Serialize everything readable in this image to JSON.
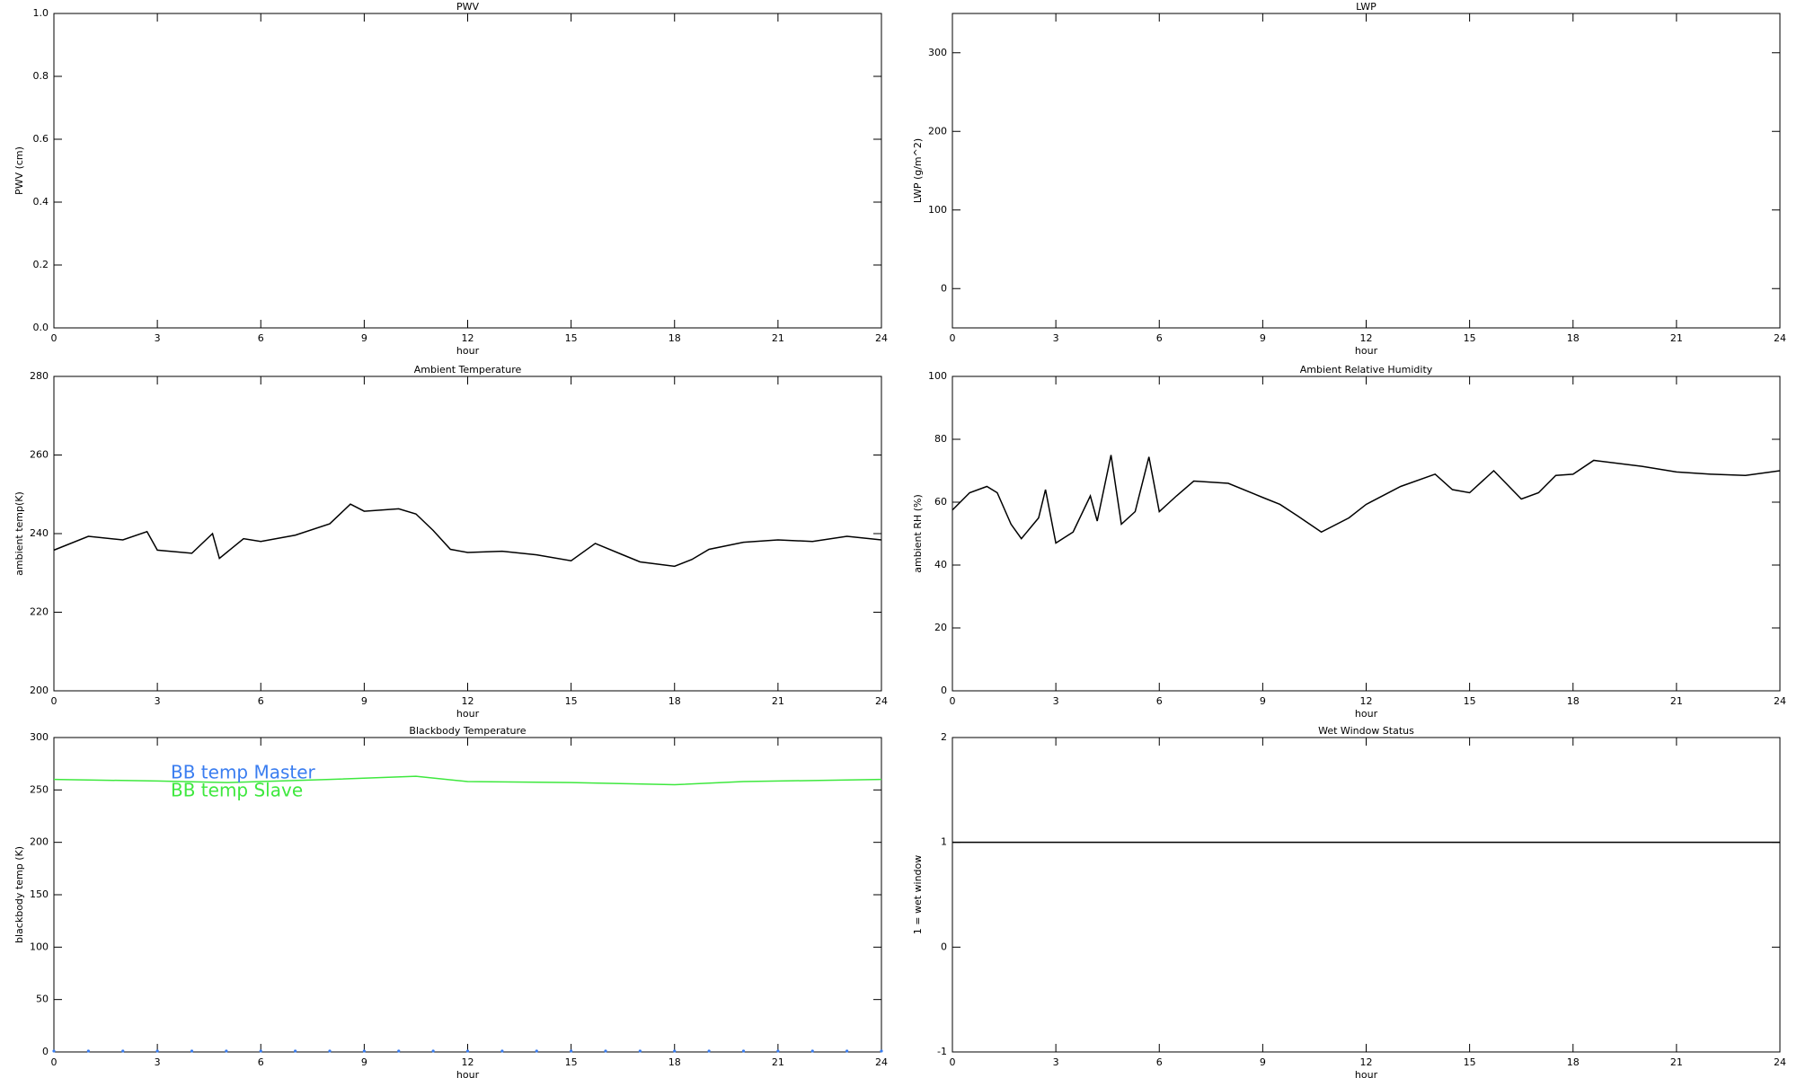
{
  "chart_data": [
    {
      "type": "line",
      "title": "PWV",
      "xlabel": "hour",
      "ylabel": "PWV (cm)",
      "xlim": [
        0,
        24
      ],
      "xticks": [
        0,
        3,
        6,
        9,
        12,
        15,
        18,
        21,
        24
      ],
      "ylim": [
        0,
        1
      ],
      "yticks": [
        {
          "value": 0,
          "label": "0.0"
        },
        0.2,
        0.4,
        0.6,
        0.8,
        {
          "value": 1,
          "label": "1.0"
        }
      ]
    },
    {
      "type": "line",
      "title": "LWP",
      "xlabel": "hour",
      "ylabel": "LWP (g/m^2)",
      "xlim": [
        0,
        24
      ],
      "xticks": [
        0,
        3,
        6,
        9,
        12,
        15,
        18,
        21,
        24
      ],
      "ylim": [
        -50,
        350
      ],
      "yticks": [
        0,
        100,
        200,
        300
      ]
    },
    {
      "type": "line",
      "title": "Ambient Temperature",
      "xlabel": "hour",
      "ylabel": "ambient temp(K)",
      "xlim": [
        0,
        24
      ],
      "xticks": [
        0,
        3,
        6,
        9,
        12,
        15,
        18,
        21,
        24
      ],
      "ylim": [
        200,
        280
      ],
      "yticks": [
        200,
        220,
        240,
        260,
        280
      ],
      "series": [
        {
          "color": "#000000",
          "x": [
            0,
            1,
            2,
            2.7,
            3,
            4,
            4.6,
            4.8,
            5.5,
            6,
            7,
            8,
            8.6,
            9,
            10,
            10.5,
            11,
            11.5,
            12,
            13,
            14,
            15,
            15.7,
            16.5,
            17,
            18,
            18.5,
            19,
            20,
            21,
            22,
            23,
            24
          ],
          "values": [
            235.8,
            239.3,
            238.4,
            240.5,
            235.8,
            235,
            240,
            233.7,
            238.7,
            238,
            239.6,
            242.5,
            247.5,
            245.7,
            246.3,
            245,
            240.8,
            236,
            235.2,
            235.5,
            234.6,
            233.1,
            237.5,
            234.6,
            232.8,
            231.7,
            233.4,
            236,
            237.8,
            238.4,
            238,
            239.3,
            238.4
          ]
        }
      ]
    },
    {
      "type": "line",
      "title": "Ambient Relative Humidity",
      "xlabel": "hour",
      "ylabel": "ambient RH (%)",
      "xlim": [
        0,
        24
      ],
      "xticks": [
        0,
        3,
        6,
        9,
        12,
        15,
        18,
        21,
        24
      ],
      "ylim": [
        0,
        100
      ],
      "yticks": [
        0,
        20,
        40,
        60,
        80,
        100
      ],
      "series": [
        {
          "color": "#000000",
          "x": [
            0,
            0.5,
            1,
            1.3,
            1.7,
            2,
            2.5,
            2.7,
            3,
            3.5,
            4,
            4.2,
            4.6,
            4.9,
            5.3,
            5.7,
            6,
            6.5,
            7,
            8,
            9,
            9.5,
            10,
            10.7,
            11.5,
            12,
            13,
            14,
            14.5,
            15,
            15.7,
            16.5,
            17,
            17.5,
            18,
            18.6,
            20,
            21,
            22,
            23,
            24
          ],
          "values": [
            57.5,
            63,
            65,
            63,
            53,
            48.4,
            55,
            64,
            47,
            50.5,
            62,
            54,
            75,
            53,
            57,
            74.4,
            57,
            62,
            66.7,
            66,
            61.5,
            59.3,
            55.7,
            50.5,
            55,
            59.3,
            65,
            68.9,
            64,
            63,
            70,
            61,
            63,
            68.5,
            68.9,
            73.3,
            71.4,
            69.6,
            68.9,
            68.5,
            70
          ]
        }
      ]
    },
    {
      "type": "line",
      "title": "Blackbody Temperature",
      "xlabel": "hour",
      "ylabel": "blackbody temp (K)",
      "xlim": [
        0,
        24
      ],
      "xticks": [
        0,
        3,
        6,
        9,
        12,
        15,
        18,
        21,
        24
      ],
      "ylim": [
        0,
        300
      ],
      "yticks": [
        0,
        50,
        100,
        150,
        200,
        250,
        300
      ],
      "legend": "upper left",
      "series": [
        {
          "name": "BB temp Master",
          "color": "#3a7df0",
          "mode": "markers",
          "x": [
            0,
            1,
            2,
            3,
            4,
            5,
            6,
            7,
            8,
            9,
            10,
            11,
            12,
            13,
            14,
            15,
            16,
            17,
            18,
            19,
            20,
            21,
            22,
            23,
            24
          ],
          "values": [
            0,
            0,
            0,
            0,
            0,
            0,
            0,
            0,
            0,
            0,
            0,
            0,
            0,
            0,
            0,
            0,
            0,
            0,
            0,
            0,
            0,
            0,
            0,
            0,
            0
          ]
        },
        {
          "name": "BB temp Slave",
          "color": "#3ee83e",
          "x": [
            0,
            3,
            5,
            8,
            10.5,
            12,
            15,
            18,
            20,
            24
          ],
          "values": [
            260,
            258.5,
            257,
            260,
            263,
            258,
            257,
            255,
            258,
            260
          ]
        }
      ]
    },
    {
      "type": "line",
      "title": "Wet Window Status",
      "xlabel": "hour",
      "ylabel": "1 = wet window",
      "xlim": [
        0,
        24
      ],
      "xticks": [
        0,
        3,
        6,
        9,
        12,
        15,
        18,
        21,
        24
      ],
      "ylim": [
        -1,
        2
      ],
      "yticks": [
        -1,
        0,
        1,
        2
      ],
      "series": [
        {
          "color": "#000000",
          "x": [
            0,
            24
          ],
          "values": [
            1,
            1
          ]
        }
      ]
    }
  ]
}
